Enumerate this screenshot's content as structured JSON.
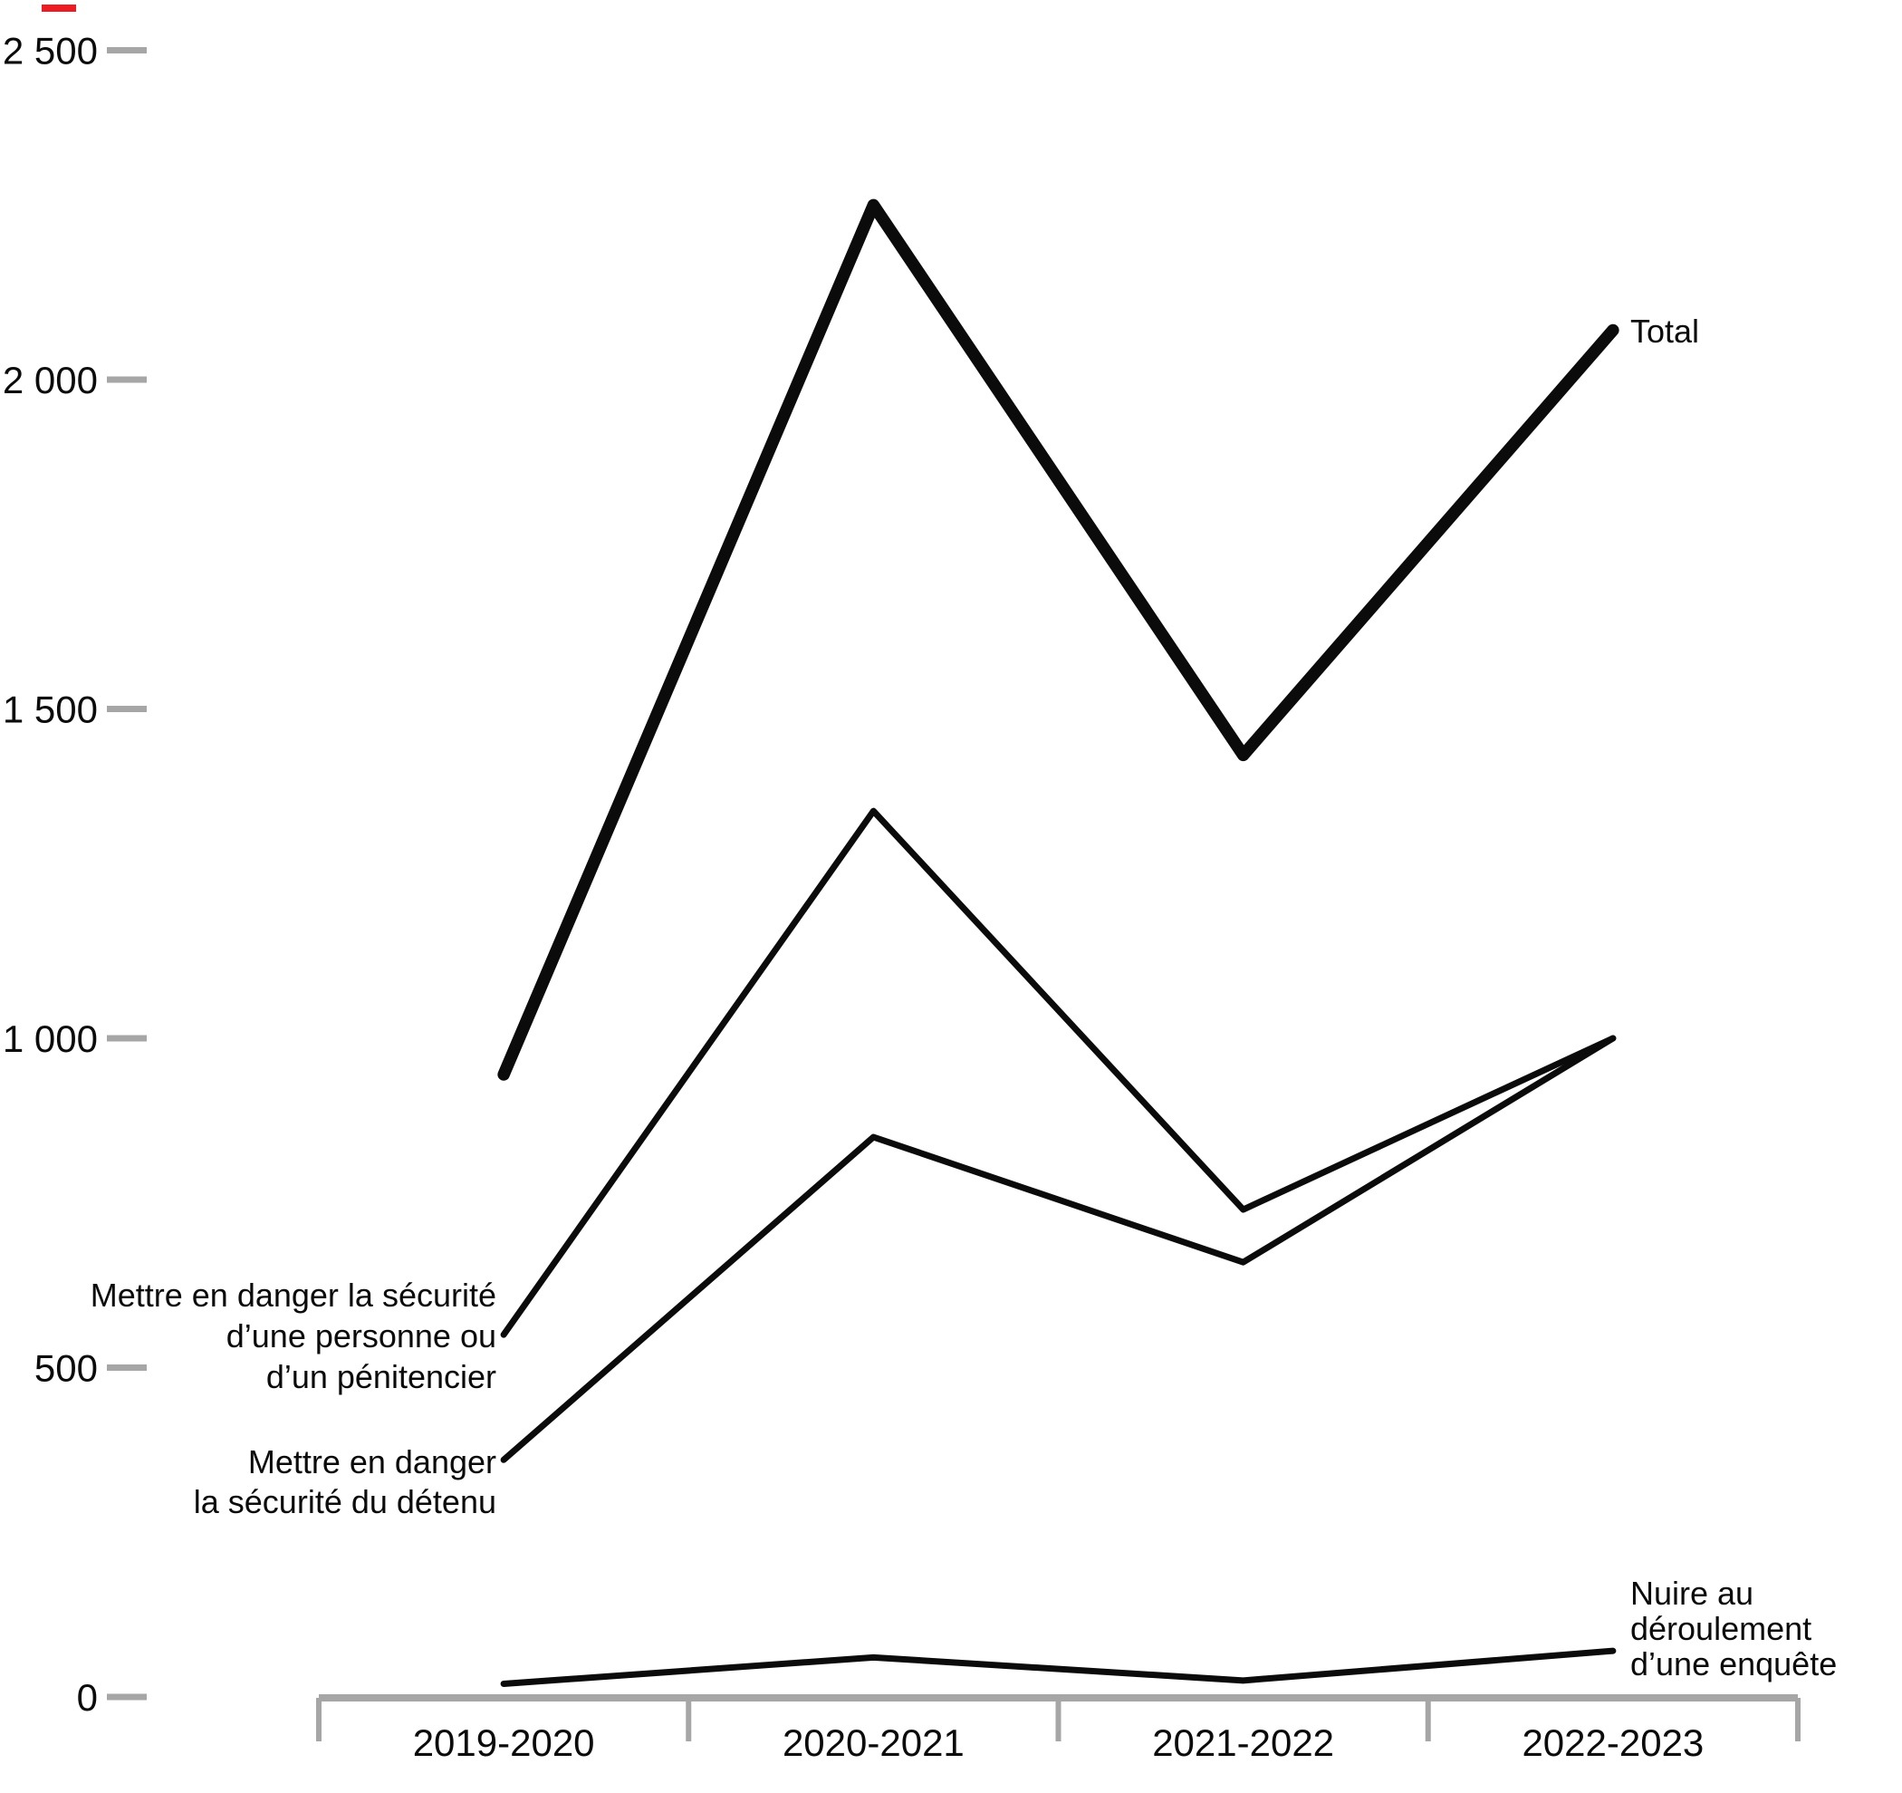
{
  "chart_data": {
    "type": "line",
    "title": "",
    "xlabel": "",
    "ylabel": "",
    "categories": [
      "2019-2020",
      "2020-2021",
      "2021-2022",
      "2022-2023"
    ],
    "series": [
      {
        "id": "total",
        "name": "Total",
        "values": [
          945,
          2265,
          1430,
          2075
        ],
        "stroke_width": 13.5,
        "label_lines": [
          "Total"
        ],
        "label_anchor": "start",
        "label_x": 1800,
        "label_y": 378,
        "label_line_height": 44
      },
      {
        "id": "personne-penitencier",
        "name": "Mettre en danger la sécurité d’une personne ou d’un pénitencier",
        "values": [
          550,
          1345,
          740,
          1000
        ],
        "stroke_width": 7,
        "label_lines": [
          "Mettre en danger la sécurité",
          "d’une personne ou",
          "d’un pénitencier"
        ],
        "label_anchor": "end",
        "label_x": 548,
        "label_y": 1442,
        "label_line_height": 45
      },
      {
        "id": "detenu",
        "name": "Mettre en danger la sécurité du détenu",
        "values": [
          360,
          850,
          660,
          1000
        ],
        "stroke_width": 7,
        "label_lines": [
          "Mettre en danger",
          "la sécurité du détenu"
        ],
        "label_anchor": "end",
        "label_x": 548,
        "label_y": 1626,
        "label_line_height": 44
      },
      {
        "id": "enquete",
        "name": "Nuire au déroulement d’une enquête",
        "values": [
          20,
          60,
          25,
          70
        ],
        "stroke_width": 7,
        "label_lines": [
          "Nuire au",
          "déroulement",
          "d’une enquête"
        ],
        "label_anchor": "start",
        "label_x": 1800,
        "label_y": 1771,
        "label_line_height": 39
      }
    ],
    "y_ticks": [
      {
        "label": "2 500",
        "value": 2500
      },
      {
        "label": "2 000",
        "value": 2000
      },
      {
        "label": "1 500",
        "value": 1500
      },
      {
        "label": "1 000",
        "value": 1000
      },
      {
        "label": "500",
        "value": 500
      },
      {
        "label": "0",
        "value": 0
      }
    ],
    "ylim": [
      0,
      2500
    ],
    "grid": false,
    "legend_position": "inline-annotations",
    "line_color": "#0b0b0b",
    "axis_color": "#a6a6a6",
    "red_mark_color": "#ed1c24"
  }
}
